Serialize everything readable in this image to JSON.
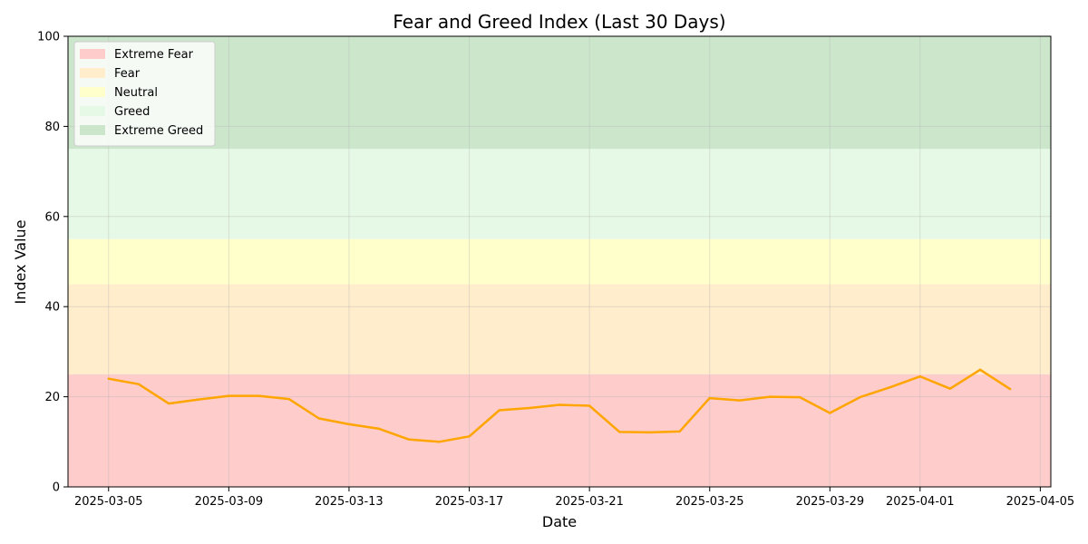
{
  "chart_data": {
    "type": "line",
    "title": "Fear and Greed Index (Last 30 Days)",
    "xlabel": "Date",
    "ylabel": "Index Value",
    "ylim": [
      0,
      100
    ],
    "grid": true,
    "legend_placement": "top-left",
    "line_color": "#FFA500",
    "y_ticks": [
      "0",
      "20",
      "40",
      "60",
      "80",
      "100"
    ],
    "x_ticks": [
      "2025-03-05",
      "2025-03-09",
      "2025-03-13",
      "2025-03-17",
      "2025-03-21",
      "2025-03-25",
      "2025-03-29",
      "2025-04-01",
      "2025-04-05"
    ],
    "bands": [
      {
        "name": "Extreme Fear",
        "from": 0,
        "to": 25,
        "color": "#ffcccc"
      },
      {
        "name": "Fear",
        "from": 25,
        "to": 45,
        "color": "#ffedcc"
      },
      {
        "name": "Neutral",
        "from": 45,
        "to": 55,
        "color": "#ffffcc"
      },
      {
        "name": "Greed",
        "from": 55,
        "to": 75,
        "color": "#e6f9e6"
      },
      {
        "name": "Extreme Greed",
        "from": 75,
        "to": 100,
        "color": "#cce6cc"
      }
    ],
    "x": [
      "2025-03-05",
      "2025-03-06",
      "2025-03-07",
      "2025-03-08",
      "2025-03-09",
      "2025-03-10",
      "2025-03-11",
      "2025-03-12",
      "2025-03-13",
      "2025-03-14",
      "2025-03-15",
      "2025-03-16",
      "2025-03-17",
      "2025-03-18",
      "2025-03-19",
      "2025-03-20",
      "2025-03-21",
      "2025-03-22",
      "2025-03-23",
      "2025-03-24",
      "2025-03-25",
      "2025-03-26",
      "2025-03-27",
      "2025-03-28",
      "2025-03-29",
      "2025-03-30",
      "2025-03-31",
      "2025-04-01",
      "2025-04-02",
      "2025-04-03",
      "2025-04-04"
    ],
    "y": [
      24,
      22.8,
      18.5,
      19.4,
      20.2,
      20.2,
      19.5,
      15.2,
      13.9,
      12.9,
      10.5,
      10,
      11.2,
      17,
      17.5,
      18.2,
      18,
      12.2,
      12.1,
      12.3,
      19.7,
      19.2,
      20,
      19.9,
      16.4,
      19.9,
      22.1,
      24.5,
      21.8,
      26,
      21.7
    ]
  }
}
